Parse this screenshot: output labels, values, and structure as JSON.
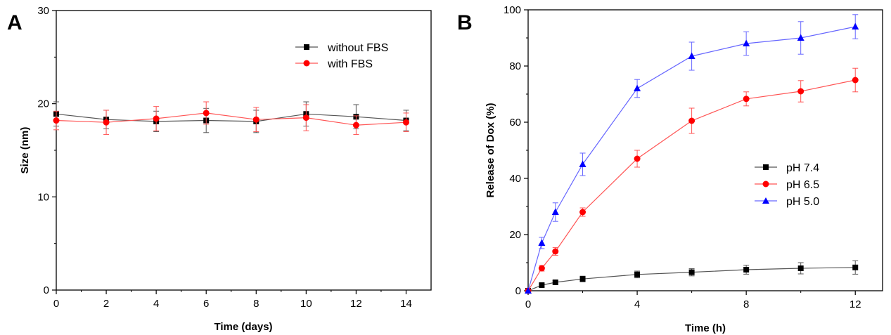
{
  "chart_data": [
    {
      "panel_label": "A",
      "type": "line",
      "xlabel": "Time (days)",
      "ylabel": "Size (nm)",
      "xlim": [
        0,
        15
      ],
      "ylim": [
        0,
        30
      ],
      "xticks": [
        "0",
        "2",
        "4",
        "6",
        "8",
        "10",
        "12",
        "14"
      ],
      "yticks": [
        "0",
        "10",
        "20",
        "30"
      ],
      "legend_position": "top-right",
      "x": [
        0,
        2,
        4,
        6,
        8,
        10,
        12,
        14
      ],
      "series": [
        {
          "name": "without FBS",
          "color": "#000000",
          "line_color": "#555555",
          "marker": "square",
          "values": [
            18.9,
            18.3,
            18.1,
            18.2,
            18.1,
            18.9,
            18.6,
            18.2
          ],
          "errors": [
            1.3,
            1.0,
            1.1,
            1.3,
            1.2,
            1.3,
            1.3,
            1.1
          ]
        },
        {
          "name": "with FBS",
          "color": "#ff0000",
          "line_color": "#ff5555",
          "marker": "circle",
          "values": [
            18.2,
            18.0,
            18.4,
            19.0,
            18.3,
            18.5,
            17.7,
            18.0
          ],
          "errors": [
            1.0,
            1.3,
            1.3,
            1.2,
            1.3,
            1.4,
            1.0,
            1.0
          ]
        }
      ]
    },
    {
      "panel_label": "B",
      "type": "line",
      "xlabel": "Time (h)",
      "ylabel": "Release of Dox (%)",
      "xlim": [
        0,
        13
      ],
      "ylim": [
        0,
        100
      ],
      "xticks": [
        "0",
        "4",
        "8",
        "12"
      ],
      "yticks": [
        "0",
        "20",
        "40",
        "60",
        "80",
        "100"
      ],
      "legend_position": "center-right",
      "x": [
        0,
        0.5,
        1,
        2,
        4,
        6,
        8,
        10,
        12
      ],
      "series": [
        {
          "name": "pH 7.4",
          "color": "#000000",
          "line_color": "#555555",
          "marker": "square",
          "values": [
            0,
            2.0,
            3.0,
            4.2,
            5.8,
            6.6,
            7.5,
            8.0,
            8.3
          ],
          "errors": [
            0,
            0.5,
            0.6,
            1.0,
            1.2,
            1.3,
            1.6,
            2.0,
            2.4
          ]
        },
        {
          "name": "pH 6.5",
          "color": "#ff0000",
          "line_color": "#ff5555",
          "marker": "circle",
          "values": [
            0,
            8.0,
            14.0,
            28.0,
            47.0,
            60.5,
            68.3,
            71.0,
            75.0
          ],
          "errors": [
            0,
            1.0,
            1.4,
            1.5,
            3.0,
            4.5,
            2.5,
            3.8,
            4.2
          ]
        },
        {
          "name": "pH 5.0",
          "color": "#0000ff",
          "line_color": "#6666ff",
          "marker": "triangle",
          "values": [
            0,
            17.0,
            28.0,
            45.0,
            72.0,
            83.5,
            88.0,
            90.0,
            94.0
          ],
          "errors": [
            0,
            2.0,
            3.3,
            4.0,
            3.2,
            5.0,
            4.2,
            5.8,
            4.3
          ]
        }
      ]
    }
  ]
}
